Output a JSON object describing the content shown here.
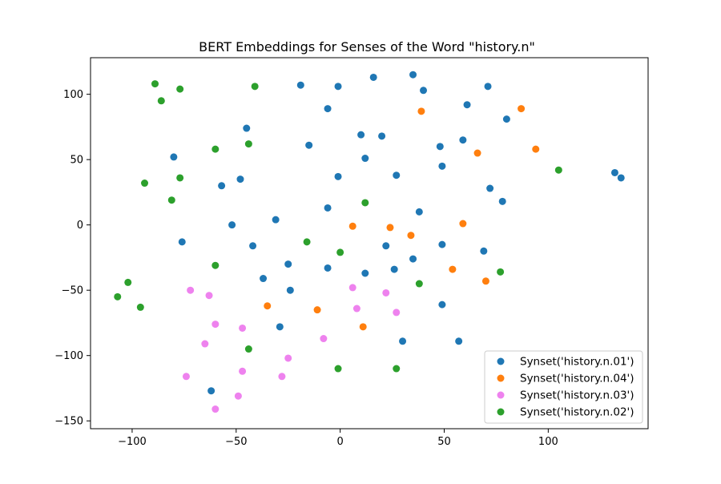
{
  "chart_data": {
    "type": "scatter",
    "title": "BERT Embeddings for Senses of the Word \"history.n\"",
    "xlabel": "",
    "ylabel": "",
    "xlim": [
      -120,
      148
    ],
    "ylim": [
      -156,
      128
    ],
    "xticks": [
      -100,
      -50,
      0,
      50,
      100
    ],
    "yticks": [
      -150,
      -100,
      -50,
      0,
      50,
      100
    ],
    "xtick_labels": [
      "−100",
      "−50",
      "0",
      "50",
      "100"
    ],
    "ytick_labels": [
      "−150",
      "−100",
      "−50",
      "0",
      "50",
      "100"
    ],
    "grid": false,
    "legend_position": "lower right",
    "series": [
      {
        "name": "Synset('history.n.01')",
        "color": "#1f77b4",
        "points": [
          [
            -19,
            107
          ],
          [
            -1,
            106
          ],
          [
            16,
            113
          ],
          [
            35,
            115
          ],
          [
            40,
            103
          ],
          [
            71,
            106
          ],
          [
            -6,
            89
          ],
          [
            61,
            92
          ],
          [
            80,
            81
          ],
          [
            -45,
            74
          ],
          [
            10,
            69
          ],
          [
            20,
            68
          ],
          [
            -15,
            61
          ],
          [
            48,
            60
          ],
          [
            59,
            65
          ],
          [
            -80,
            52
          ],
          [
            12,
            51
          ],
          [
            49,
            45
          ],
          [
            -48,
            35
          ],
          [
            -1,
            37
          ],
          [
            27,
            38
          ],
          [
            -57,
            30
          ],
          [
            72,
            28
          ],
          [
            78,
            18
          ],
          [
            132,
            40
          ],
          [
            135,
            36
          ],
          [
            -6,
            13
          ],
          [
            38,
            10
          ],
          [
            -31,
            4
          ],
          [
            -52,
            0
          ],
          [
            -76,
            -13
          ],
          [
            -42,
            -16
          ],
          [
            22,
            -16
          ],
          [
            49,
            -15
          ],
          [
            69,
            -20
          ],
          [
            -25,
            -30
          ],
          [
            35,
            -26
          ],
          [
            -6,
            -33
          ],
          [
            26,
            -34
          ],
          [
            12,
            -37
          ],
          [
            -37,
            -41
          ],
          [
            -24,
            -50
          ],
          [
            49,
            -61
          ],
          [
            -29,
            -78
          ],
          [
            30,
            -89
          ],
          [
            57,
            -89
          ],
          [
            -62,
            -127
          ]
        ]
      },
      {
        "name": "Synset('history.n.04')",
        "color": "#ff7f0e",
        "points": [
          [
            39,
            87
          ],
          [
            87,
            89
          ],
          [
            66,
            55
          ],
          [
            94,
            58
          ],
          [
            6,
            -1
          ],
          [
            24,
            -2
          ],
          [
            34,
            -8
          ],
          [
            59,
            1
          ],
          [
            54,
            -34
          ],
          [
            70,
            -43
          ],
          [
            -35,
            -62
          ],
          [
            -11,
            -65
          ],
          [
            11,
            -78
          ]
        ]
      },
      {
        "name": "Synset('history.n.03')",
        "color": "#ee82ee",
        "points": [
          [
            -72,
            -50
          ],
          [
            -63,
            -54
          ],
          [
            6,
            -48
          ],
          [
            22,
            -52
          ],
          [
            -60,
            -76
          ],
          [
            -47,
            -79
          ],
          [
            8,
            -64
          ],
          [
            27,
            -67
          ],
          [
            -65,
            -91
          ],
          [
            -8,
            -87
          ],
          [
            -25,
            -102
          ],
          [
            -47,
            -112
          ],
          [
            -74,
            -116
          ],
          [
            -28,
            -116
          ],
          [
            -49,
            -131
          ],
          [
            -60,
            -141
          ]
        ]
      },
      {
        "name": "Synset('history.n.02')",
        "color": "#2ca02c",
        "points": [
          [
            -89,
            108
          ],
          [
            -77,
            104
          ],
          [
            -41,
            106
          ],
          [
            -86,
            95
          ],
          [
            -60,
            58
          ],
          [
            -44,
            62
          ],
          [
            105,
            42
          ],
          [
            -77,
            36
          ],
          [
            -94,
            32
          ],
          [
            -81,
            19
          ],
          [
            12,
            17
          ],
          [
            -16,
            -13
          ],
          [
            0,
            -21
          ],
          [
            -60,
            -31
          ],
          [
            -102,
            -44
          ],
          [
            38,
            -45
          ],
          [
            77,
            -36
          ],
          [
            -107,
            -55
          ],
          [
            -96,
            -63
          ],
          [
            -44,
            -95
          ],
          [
            -1,
            -110
          ],
          [
            27,
            -110
          ]
        ]
      }
    ]
  }
}
